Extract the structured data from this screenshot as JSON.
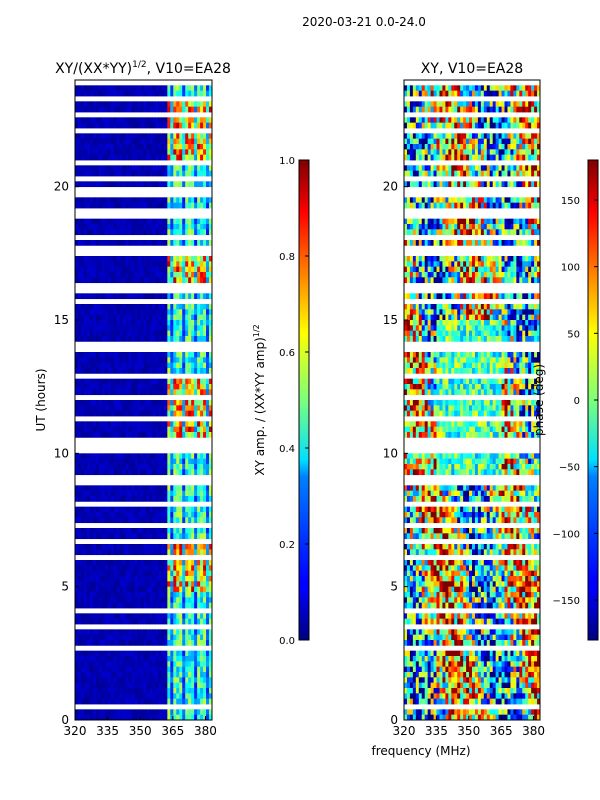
{
  "figure": {
    "suptitle": "2020-03-21 0.0-24.0",
    "xlabel": "frequency (MHz)"
  },
  "chart_data": [
    {
      "type": "heatmap",
      "panel": "left",
      "title": "XY/(XX*YY)^{1/2}, V10=EA28",
      "title_main": "XY/(XX*YY)",
      "title_sup": "1/2",
      "title_rest": ", V10=EA28",
      "xlabel": "",
      "ylabel": "UT (hours)",
      "xlim": [
        320,
        383
      ],
      "ylim": [
        0,
        24
      ],
      "xticks": [
        320,
        335,
        350,
        365,
        380
      ],
      "yticks": [
        0,
        5,
        10,
        15,
        20
      ],
      "colorbar": {
        "label": "XY amp. / (XX*YY amp)^{1/2}",
        "label_main": "XY amp. / (XX*YY amp)",
        "label_sup": "1/2",
        "range": [
          0.0,
          1.0
        ],
        "ticks": [
          "0.0",
          "0.2",
          "0.4",
          "0.6",
          "0.8",
          "1.0"
        ],
        "tick_values": [
          0.0,
          0.2,
          0.4,
          0.6,
          0.8,
          1.0
        ]
      },
      "colormap": "jet"
    },
    {
      "type": "heatmap",
      "panel": "right",
      "title": "XY, V10=EA28",
      "xlabel": "frequency (MHz)",
      "ylabel": "",
      "xlim": [
        320,
        383
      ],
      "ylim": [
        0,
        24
      ],
      "xticks": [
        320,
        335,
        350,
        365,
        380
      ],
      "yticks": [
        0,
        5,
        10,
        15,
        20
      ],
      "colorbar": {
        "label": "phase (deg)",
        "range": [
          -180,
          180
        ],
        "ticks": [
          "150",
          "100",
          "50",
          "0",
          "−50",
          "−100",
          "−150"
        ],
        "tick_values": [
          150,
          100,
          50,
          0,
          -50,
          -100,
          -150
        ]
      },
      "colormap": "jet"
    }
  ],
  "colors": {
    "jet_low": "#00007f",
    "jet_high": "#7f0000",
    "axes": "#000000",
    "background": "#ffffff"
  }
}
